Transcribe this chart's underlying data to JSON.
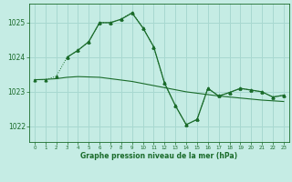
{
  "background_color": "#c5ece4",
  "grid_color": "#a8d8d0",
  "line_color": "#1a6b2a",
  "xlabel": "Graphe pression niveau de la mer (hPa)",
  "xlim": [
    -0.5,
    23.5
  ],
  "ylim": [
    1021.55,
    1025.55
  ],
  "yticks": [
    1022,
    1023,
    1024,
    1025
  ],
  "xticks": [
    0,
    1,
    2,
    3,
    4,
    5,
    6,
    7,
    8,
    9,
    10,
    11,
    12,
    13,
    14,
    15,
    16,
    17,
    18,
    19,
    20,
    21,
    22,
    23
  ],
  "xticklabels": [
    "0",
    "1",
    "2",
    "3",
    "4",
    "5",
    "6",
    "7",
    "8",
    "9",
    "10",
    "11",
    "12",
    "13",
    "14",
    "15",
    "16",
    "17",
    "18",
    "19",
    "20",
    "21",
    "22",
    "23"
  ],
  "line1_x": [
    0,
    1,
    2,
    3,
    4,
    5,
    6,
    7,
    8,
    9,
    10,
    11,
    12,
    13,
    14,
    15,
    16,
    17,
    18,
    19,
    20,
    21,
    22,
    23
  ],
  "line1_y": [
    1023.35,
    1023.35,
    1023.45,
    1024.0,
    1024.2,
    1024.45,
    1025.0,
    1025.0,
    1025.1,
    1025.3,
    1024.85,
    1024.3,
    1023.25,
    1022.6,
    1022.05,
    1022.2,
    1023.1,
    1022.88,
    1022.98,
    1023.1,
    1023.05,
    1023.0,
    1022.85,
    1022.9
  ],
  "line2_x": [
    0,
    1,
    2,
    3,
    4,
    5,
    6,
    7,
    8,
    9,
    10,
    11,
    12,
    13,
    14,
    15,
    16,
    17,
    18,
    19,
    20,
    21,
    22,
    23
  ],
  "line2_y": [
    1023.35,
    1023.36,
    1023.38,
    1023.42,
    1023.44,
    1023.43,
    1023.42,
    1023.38,
    1023.34,
    1023.3,
    1023.24,
    1023.18,
    1023.12,
    1023.06,
    1023.0,
    1022.96,
    1022.92,
    1022.88,
    1022.85,
    1022.82,
    1022.79,
    1022.76,
    1022.74,
    1022.72
  ],
  "line3_x": [
    3,
    4,
    5,
    6,
    7,
    8,
    9,
    10,
    11,
    12,
    13,
    14,
    15,
    16,
    17,
    18,
    19,
    20,
    21,
    22,
    23
  ],
  "line3_y": [
    1024.0,
    1024.2,
    1024.45,
    1025.0,
    1025.0,
    1025.1,
    1025.28,
    1024.85,
    1024.3,
    1023.25,
    1022.6,
    1022.05,
    1022.2,
    1023.1,
    1022.88,
    1022.98,
    1023.1,
    1023.05,
    1023.0,
    1022.85,
    1022.9
  ]
}
